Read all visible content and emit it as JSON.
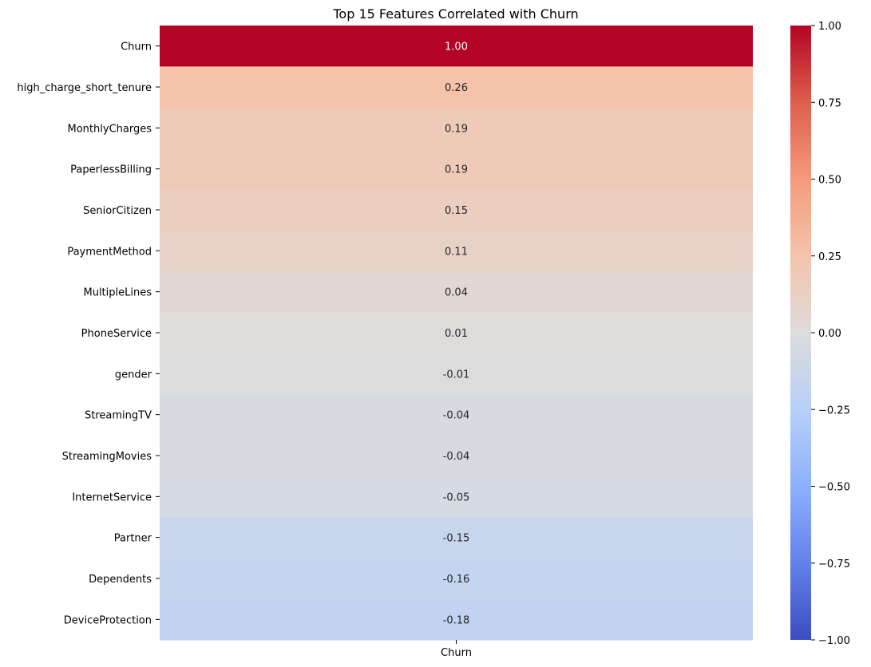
{
  "chart_data": {
    "type": "heatmap",
    "title": "Top 15 Features Correlated with Churn",
    "columns": [
      "Churn"
    ],
    "rows": [
      "Churn",
      "high_charge_short_tenure",
      "MonthlyCharges",
      "PaperlessBilling",
      "SeniorCitizen",
      "PaymentMethod",
      "MultipleLines",
      "PhoneService",
      "gender",
      "StreamingTV",
      "StreamingMovies",
      "InternetService",
      "Partner",
      "Dependents",
      "DeviceProtection"
    ],
    "values": [
      1.0,
      0.26,
      0.19,
      0.19,
      0.15,
      0.11,
      0.04,
      0.01,
      -0.01,
      -0.04,
      -0.04,
      -0.05,
      -0.15,
      -0.16,
      -0.18
    ],
    "value_labels": [
      "1.00",
      "0.26",
      "0.19",
      "0.19",
      "0.15",
      "0.11",
      "0.04",
      "0.01",
      "-0.01",
      "-0.04",
      "-0.04",
      "-0.05",
      "-0.15",
      "-0.16",
      "-0.18"
    ],
    "colormap": "coolwarm",
    "vmin": -1.0,
    "vmax": 1.0,
    "colorbar_ticks": [
      1.0,
      0.75,
      0.5,
      0.25,
      0.0,
      -0.25,
      -0.5,
      -0.75,
      -1.0
    ],
    "colorbar_tick_labels": [
      "1.00",
      "0.75",
      "0.50",
      "0.25",
      "0.00",
      "−0.25",
      "−0.50",
      "−0.75",
      "−1.00"
    ],
    "xlabel": "",
    "ylabel": "",
    "colorbar_position": "right"
  }
}
